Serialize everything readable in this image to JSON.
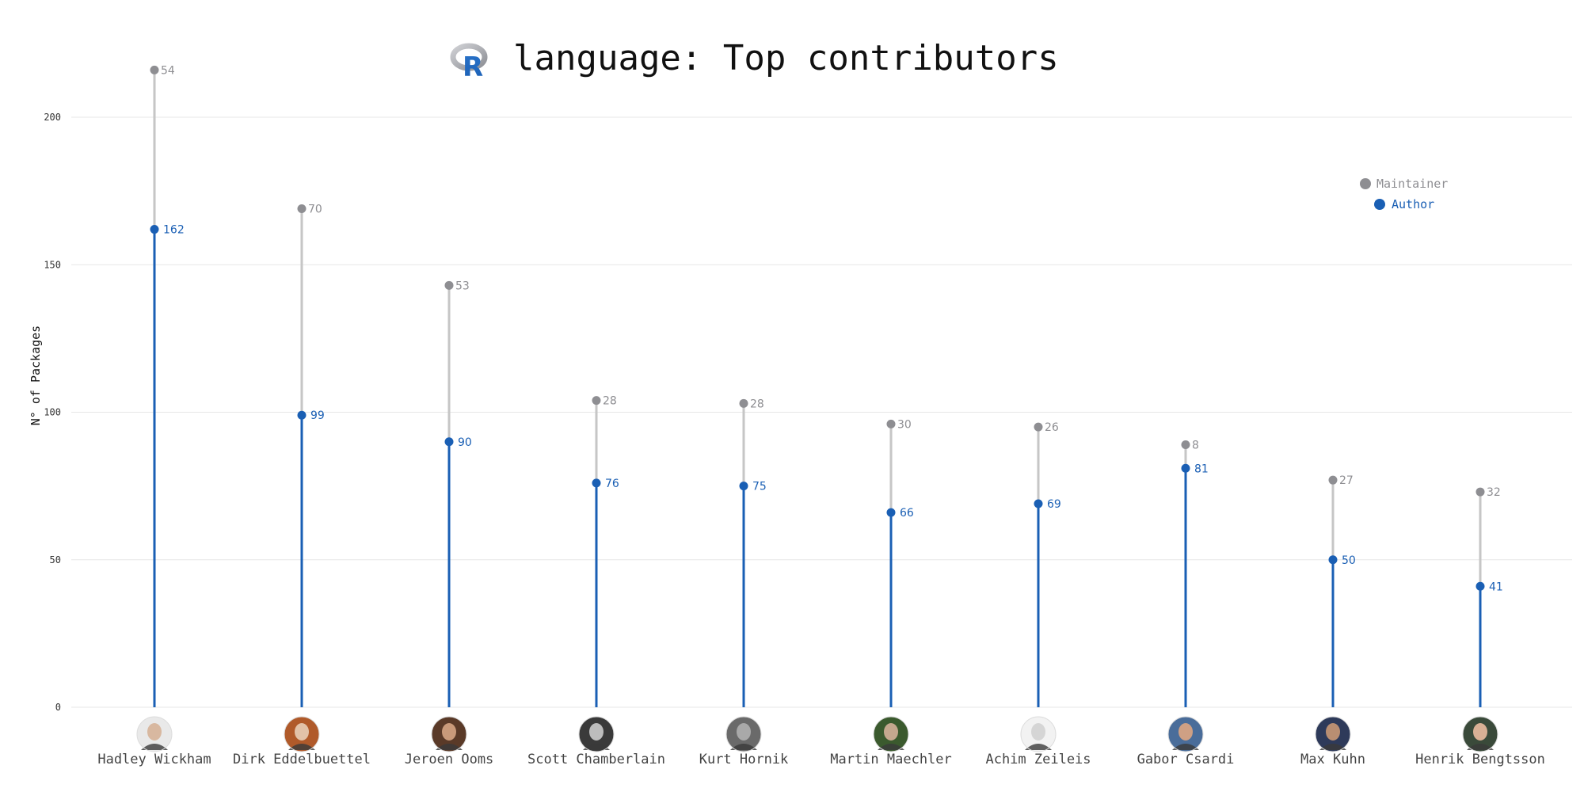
{
  "colors": {
    "maintainer": "#8e8e92",
    "maintainer_line": "#c6c6c6",
    "author": "#1a5fb4",
    "grid": "#e7e7e7",
    "axis_text": "#333333"
  },
  "chart_data": {
    "type": "lollipop",
    "title": "language: Top contributors",
    "title_logo": "R",
    "ylabel": "N° of Packages",
    "xlabel": "",
    "ylim": [
      0,
      220
    ],
    "yticks": [
      0,
      50,
      100,
      150,
      200
    ],
    "grid": "horizontal",
    "legend_position": "top-right",
    "categories": [
      "Hadley Wickham",
      "Dirk Eddelbuettel",
      "Jeroen Ooms",
      "Scott Chamberlain",
      "Kurt Hornik",
      "Martin Maechler",
      "Achim Zeileis",
      "Gabor Csardi",
      "Max Kuhn",
      "Henrik Bengtsson"
    ],
    "series": [
      {
        "name": "Maintainer",
        "values": [
          54,
          70,
          53,
          28,
          28,
          30,
          26,
          8,
          27,
          32
        ]
      },
      {
        "name": "Author",
        "values": [
          162,
          99,
          90,
          76,
          75,
          66,
          69,
          81,
          50,
          41
        ]
      }
    ]
  }
}
